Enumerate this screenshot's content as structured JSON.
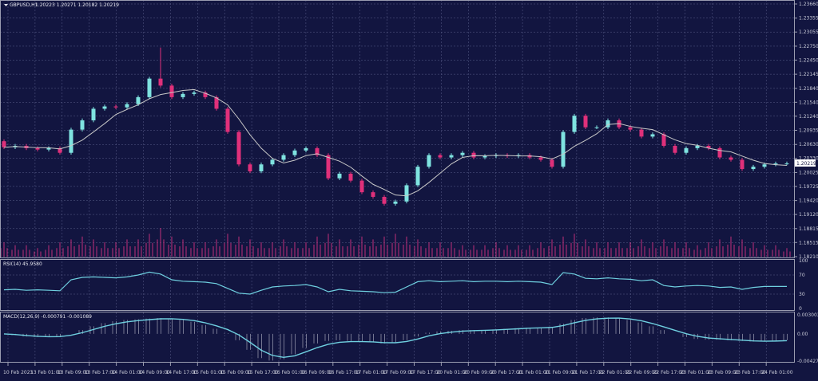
{
  "header": {
    "symbol": "GBPUSD,H1",
    "ohlc": "1.20223 1.20271 1.20182 1.20219"
  },
  "rsi_label": "RSI(14) 45.9580",
  "macd_label": "MACD(12,26,9) -0.000791 -0.001089",
  "colors": {
    "background": "#121540",
    "bull": "#7fe3e0",
    "bear": "#e0307a",
    "ma": "#c8c8c8",
    "grid": "#5a5f8a",
    "rsi": "#6fd0e0",
    "macd": "#6fd0e0",
    "histogram": "#b8b8c8",
    "volume": "#c0307a"
  },
  "chart_data": {
    "type": "candlestick",
    "price_ticks": [
      "1.23660",
      "1.23355",
      "1.23055",
      "1.22750",
      "1.22450",
      "1.22145",
      "1.21840",
      "1.21540",
      "1.21240",
      "1.20935",
      "1.20630",
      "1.20330",
      "1.20025",
      "1.19725",
      "1.19420",
      "1.19120",
      "1.18815",
      "1.18515",
      "1.18210"
    ],
    "ylim": [
      1.1821,
      1.2366
    ],
    "current_price": "1.20219",
    "time_ticks": [
      "10 Feb 2023",
      "13 Feb 01:00",
      "13 Feb 09:00",
      "13 Feb 17:00",
      "14 Feb 01:00",
      "14 Feb 09:00",
      "14 Feb 17:00",
      "15 Feb 01:00",
      "15 Feb 09:00",
      "15 Feb 17:00",
      "16 Feb 01:00",
      "16 Feb 09:00",
      "16 Feb 17:00",
      "17 Feb 01:00",
      "17 Feb 09:00",
      "17 Feb 17:00",
      "20 Feb 01:00",
      "20 Feb 09:00",
      "20 Feb 17:00",
      "21 Feb 01:00",
      "21 Feb 09:00",
      "21 Feb 17:00",
      "22 Feb 01:00",
      "22 Feb 09:00",
      "22 Feb 17:00",
      "23 Feb 01:00",
      "23 Feb 09:00",
      "23 Feb 17:00",
      "24 Feb 01:00"
    ],
    "close": [
      1.2057,
      1.206,
      1.2055,
      1.2052,
      1.2055,
      1.2045,
      1.2095,
      1.2115,
      1.214,
      1.2145,
      1.2143,
      1.215,
      1.2165,
      1.2205,
      1.219,
      1.2165,
      1.2172,
      1.2175,
      1.2165,
      1.214,
      1.209,
      1.202,
      1.2005,
      1.202,
      1.203,
      1.204,
      1.205,
      1.2055,
      1.204,
      1.199,
      1.2,
      1.1985,
      1.196,
      1.195,
      1.1935,
      1.194,
      1.1975,
      1.2015,
      1.204,
      1.2035,
      1.204,
      1.2045,
      1.2035,
      1.2038,
      1.204,
      1.2038,
      1.204,
      1.2035,
      1.203,
      1.2015,
      1.209,
      1.2125,
      1.21,
      1.21,
      1.2115,
      1.21,
      1.2095,
      1.208,
      1.2085,
      1.206,
      1.2045,
      1.2055,
      1.206,
      1.2055,
      1.2035,
      1.203,
      1.201,
      1.2015,
      1.202,
      1.2022,
      1.2022
    ],
    "open0": 1.207,
    "spike_high": {
      "index": 14,
      "price": 1.2272
    },
    "volume": [
      5,
      4,
      4,
      3,
      4,
      5,
      6,
      7,
      6,
      5,
      5,
      6,
      6,
      8,
      10,
      7,
      6,
      5,
      5,
      6,
      8,
      7,
      6,
      5,
      5,
      6,
      5,
      5,
      7,
      8,
      6,
      6,
      7,
      6,
      7,
      8,
      7,
      6,
      5,
      5,
      5,
      4,
      4,
      4,
      5,
      4,
      4,
      4,
      5,
      6,
      7,
      8,
      6,
      5,
      5,
      5,
      5,
      6,
      5,
      6,
      5,
      5,
      4,
      5,
      6,
      7,
      6,
      5,
      4,
      4,
      3
    ],
    "ma_period": 5,
    "rsi": {
      "ylim": [
        0,
        100
      ],
      "levels": [
        30,
        70
      ],
      "ticks": [
        "100",
        "70",
        "30",
        "0"
      ],
      "values": [
        39,
        40,
        38,
        39,
        38,
        37,
        60,
        65,
        66,
        65,
        64,
        66,
        70,
        76,
        72,
        60,
        57,
        56,
        55,
        52,
        42,
        32,
        30,
        38,
        45,
        47,
        48,
        50,
        45,
        35,
        40,
        37,
        36,
        35,
        33,
        34,
        45,
        56,
        58,
        56,
        57,
        58,
        56,
        57,
        57,
        56,
        57,
        56,
        55,
        50,
        75,
        72,
        63,
        62,
        64,
        62,
        61,
        58,
        60,
        48,
        45,
        47,
        48,
        47,
        44,
        45,
        40,
        44,
        46,
        46,
        46
      ]
    },
    "macd": {
      "ylim": [
        -0.004276,
        0.003003
      ],
      "ticks": [
        "0.003003",
        "0.00",
        "-0.004276"
      ],
      "values": [
        0.0,
        -0.0002,
        -0.0004,
        -0.0005,
        -0.0005,
        -0.0004,
        0.0,
        0.0006,
        0.0012,
        0.0017,
        0.002,
        0.0022,
        0.0023,
        0.0024,
        0.0025,
        0.0024,
        0.0022,
        0.0019,
        0.0014,
        0.0008,
        0.0001,
        -0.001,
        -0.0025,
        -0.0038,
        -0.0042,
        -0.004,
        -0.0032,
        -0.0022,
        -0.0015,
        -0.0011,
        -0.001,
        -0.0011,
        -0.0012,
        -0.0013,
        -0.0015,
        -0.0014,
        -0.001,
        -0.0004,
        0.0002,
        0.0004,
        0.0005,
        0.0006,
        0.0006,
        0.0006,
        0.0007,
        0.0008,
        0.0009,
        0.001,
        0.001,
        0.0011,
        0.0016,
        0.0022,
        0.0025,
        0.0026,
        0.0026,
        0.0025,
        0.0022,
        0.0018,
        0.0012,
        0.0006,
        0.0,
        -0.0005,
        -0.0008,
        -0.0009,
        -0.0009,
        -0.001,
        -0.0011,
        -0.0012,
        -0.0012,
        -0.0011,
        -0.001
      ]
    }
  }
}
